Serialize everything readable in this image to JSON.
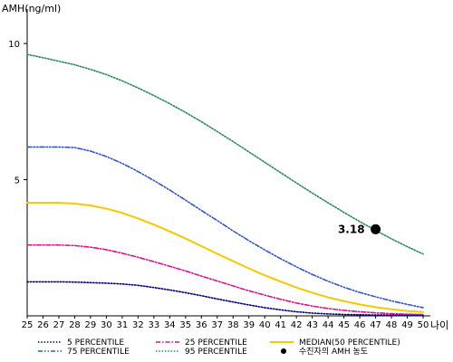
{
  "chart_data": {
    "type": "line",
    "ylabel": "AMH(ng/ml)",
    "xlabel": "나이",
    "xlim": [
      25,
      50
    ],
    "ylim": [
      0,
      11
    ],
    "x": [
      25,
      26,
      27,
      28,
      29,
      30,
      31,
      32,
      33,
      34,
      35,
      36,
      37,
      38,
      39,
      40,
      41,
      42,
      43,
      44,
      45,
      46,
      47,
      48,
      49,
      50
    ],
    "x_ticks": [
      "25",
      "26",
      "27",
      "28",
      "29",
      "30",
      "31",
      "32",
      "33",
      "34",
      "35",
      "36",
      "37",
      "38",
      "39",
      "40",
      "41",
      "42",
      "43",
      "44",
      "45",
      "46",
      "47",
      "48",
      "49",
      "50"
    ],
    "y_ticks": [
      "5",
      "10"
    ],
    "y_tick_values": [
      5,
      10
    ],
    "series": [
      {
        "name": "5 PERCENTILE",
        "color": "#000080",
        "dash": "dotted",
        "values": [
          1.25,
          1.25,
          1.25,
          1.24,
          1.22,
          1.2,
          1.17,
          1.12,
          1.04,
          0.95,
          0.85,
          0.74,
          0.62,
          0.51,
          0.4,
          0.3,
          0.22,
          0.15,
          0.1,
          0.07,
          0.05,
          0.04,
          0.03,
          0.03,
          0.03,
          0.03
        ]
      },
      {
        "name": "75 PERCENTILE",
        "color": "#3355cc",
        "dash": "dashdotdot",
        "values": [
          6.2,
          6.2,
          6.2,
          6.18,
          6.05,
          5.85,
          5.6,
          5.3,
          4.97,
          4.62,
          4.25,
          3.87,
          3.5,
          3.12,
          2.76,
          2.42,
          2.1,
          1.8,
          1.52,
          1.27,
          1.05,
          0.86,
          0.7,
          0.55,
          0.42,
          0.3
        ]
      },
      {
        "name": "25 PERCENTILE",
        "color": "#e0108a",
        "dash": "dashdot",
        "values": [
          2.6,
          2.6,
          2.6,
          2.58,
          2.52,
          2.43,
          2.3,
          2.15,
          1.99,
          1.82,
          1.65,
          1.46,
          1.28,
          1.1,
          0.92,
          0.76,
          0.61,
          0.47,
          0.36,
          0.27,
          0.2,
          0.15,
          0.11,
          0.08,
          0.06,
          0.05
        ]
      },
      {
        "name": "95 PERCENTILE",
        "color": "#2e8b57",
        "dash": "dotted",
        "values": [
          9.6,
          9.48,
          9.35,
          9.22,
          9.05,
          8.86,
          8.63,
          8.37,
          8.09,
          7.79,
          7.47,
          7.13,
          6.77,
          6.4,
          6.02,
          5.64,
          5.26,
          4.88,
          4.51,
          4.15,
          3.8,
          3.46,
          3.14,
          2.83,
          2.54,
          2.27
        ]
      },
      {
        "name": "MEDIAN(50 PERCENTILE)",
        "color": "#f5c800",
        "dash": "solid",
        "values": [
          4.15,
          4.15,
          4.15,
          4.12,
          4.05,
          3.94,
          3.78,
          3.58,
          3.35,
          3.1,
          2.84,
          2.56,
          2.28,
          2.01,
          1.74,
          1.49,
          1.26,
          1.04,
          0.85,
          0.68,
          0.54,
          0.42,
          0.32,
          0.24,
          0.18,
          0.14
        ]
      }
    ],
    "point": {
      "name": "수진자의 AMH 농도",
      "x": 47,
      "y": 3.18,
      "label": "3.18",
      "color": "#000000"
    },
    "legend_position": "bottom",
    "grid": false
  }
}
